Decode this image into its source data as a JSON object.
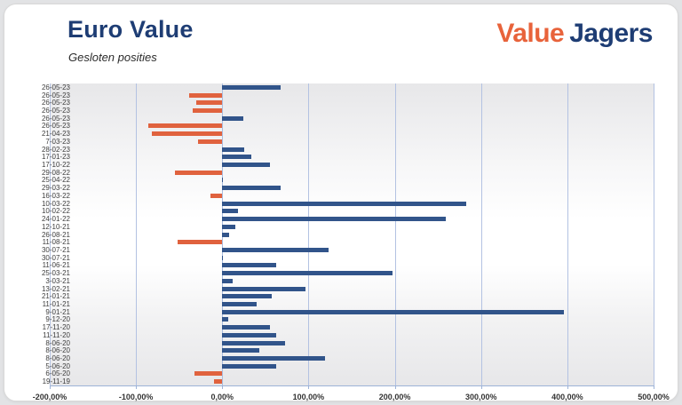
{
  "header": {
    "title": "Euro Value",
    "subtitle": "Gesloten posities",
    "logo": {
      "part1": "Value",
      "part2": "Jagers",
      "color1": "#E8633B",
      "color2": "#1E3D74"
    }
  },
  "chart_data": {
    "type": "bar",
    "orientation": "horizontal",
    "title": "Euro Value",
    "subtitle": "Gesloten posities",
    "xlabel": "",
    "ylabel": "",
    "value_unit": "percent",
    "xlim": [
      -200,
      500
    ],
    "x_tick_step": 100,
    "x_tick_labels": [
      "-200,00%",
      "-100,00%",
      "0,00%",
      "100,00%",
      "200,00%",
      "300,00%",
      "400,00%",
      "500,00%"
    ],
    "grid": "vertical",
    "legend_position": "none",
    "colors": {
      "positive_bar": "#31548A",
      "negative_bar": "#E0623E",
      "gridline": "#B3C2E2",
      "plot_bg_top": "#E7E7E9",
      "plot_bg_mid": "#FFFFFF"
    },
    "categories": [
      "26-05-23",
      "26-05-23",
      "26-05-23",
      "26-05-23",
      "26-05-23",
      "26-05-23",
      "21-04-23",
      "7-03-23",
      "28-02-23",
      "17-01-23",
      "17-10-22",
      "29-08-22",
      "25-04-22",
      "29-03-22",
      "16-03-22",
      "10-03-22",
      "10-02-22",
      "24-01-22",
      "12-10-21",
      "26-08-21",
      "11-08-21",
      "30-07-21",
      "30-07-21",
      "11-06-21",
      "25-03-21",
      "3-03-21",
      "13-02-21",
      "21-01-21",
      "11-01-21",
      "9-01-21",
      "9-12-20",
      "17-11-20",
      "11-11-20",
      "8-06-20",
      "8-06-20",
      "8-06-20",
      "5-06-20",
      "6-05-20",
      "19-11-19"
    ],
    "values": [
      68,
      -38,
      -30,
      -34,
      24,
      -86,
      -82,
      -28,
      25,
      34,
      55,
      -55,
      1,
      68,
      -14,
      283,
      18,
      259,
      15,
      8,
      -52,
      123,
      1,
      63,
      197,
      12,
      96,
      57,
      40,
      396,
      7,
      55,
      63,
      73,
      43,
      119,
      63,
      -32,
      -10
    ]
  }
}
